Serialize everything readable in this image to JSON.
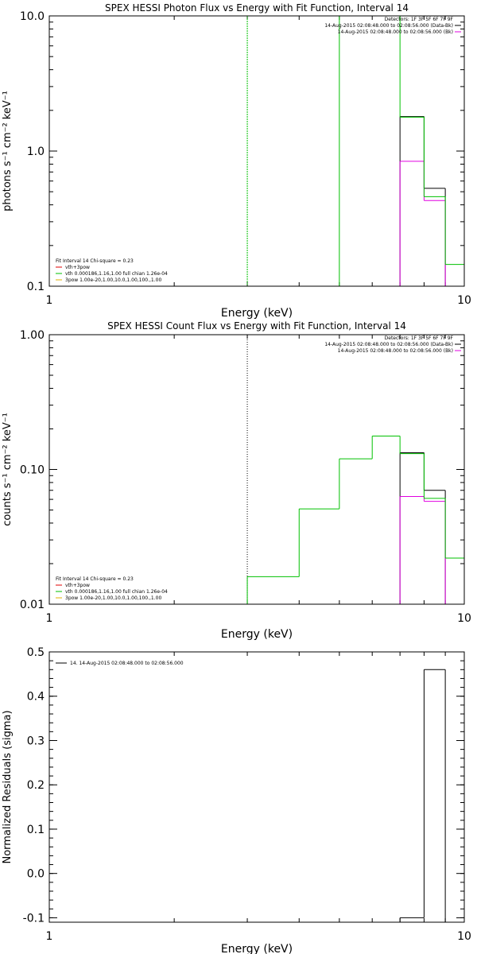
{
  "chart_data": [
    {
      "type": "step-histogram",
      "title": "SPEX HESSI Photon Flux vs Energy with Fit Function, Interval 14",
      "xlabel": "Energy (keV)",
      "ylabel": "photons s⁻¹ cm⁻² keV⁻¹",
      "x_scale": "log",
      "y_scale": "log",
      "xlim": [
        1,
        10
      ],
      "ylim": [
        0.1,
        10
      ],
      "x_ticks": [
        "1",
        "10"
      ],
      "y_ticks": [
        "0.1",
        "1.0",
        "10.0"
      ],
      "vline": {
        "x": 3.0,
        "style": "dashed",
        "color": "#00c000"
      },
      "legend_top": {
        "position": "top-right",
        "entries": [
          {
            "text": "Detectors: 1F 3F 5F 6F 7F 9F",
            "color": ""
          },
          {
            "text": "14-Aug-2015 02:08:48.000 to 02:08:56.000 (Data-Bk)",
            "color": "#000000"
          },
          {
            "text": "14-Aug-2015 02:08:48.000 to 02:08:56.000 (Bk)",
            "color": "#e000e0"
          }
        ]
      },
      "legend_bottom": {
        "position": "bottom-left",
        "entries": [
          {
            "text": "Fit Interval 14    Chi-square = 0.23",
            "color": ""
          },
          {
            "text": "vth+3pow",
            "color": "#e00000"
          },
          {
            "text": "vth 0.000186,1.16,1.00  full chian 1.26e-04",
            "color": "#00c000"
          },
          {
            "text": "3pow 1.00e-20,1.00,10.0,1.00,100.,1.00",
            "color": "#e0b000"
          }
        ]
      },
      "series": [
        {
          "name": "Data-Bk",
          "color": "#000000",
          "edges": [
            7,
            8,
            9
          ],
          "values": [
            1.8,
            0.53
          ]
        },
        {
          "name": "Bk",
          "color": "#e000e0",
          "edges": [
            7,
            8,
            9
          ],
          "values": [
            0.84,
            0.43
          ]
        },
        {
          "name": "vth",
          "color": "#00c000",
          "edges": [
            5,
            6,
            7,
            8,
            9,
            10
          ],
          "values": [
            10.0,
            10.0,
            1.78,
            0.46,
            0.145
          ]
        }
      ]
    },
    {
      "type": "step-histogram",
      "title": "SPEX HESSI Count Flux vs Energy with Fit Function, Interval 14",
      "xlabel": "Energy (keV)",
      "ylabel": "counts s⁻¹ cm⁻² keV⁻¹",
      "x_scale": "log",
      "y_scale": "log",
      "xlim": [
        1,
        10
      ],
      "ylim": [
        0.01,
        1.0
      ],
      "x_ticks": [
        "1",
        "10"
      ],
      "y_ticks": [
        "0.01",
        "0.10",
        "1.00"
      ],
      "vline": {
        "x": 3.0,
        "style": "dotted",
        "color": "#000000"
      },
      "legend_top": {
        "position": "top-right",
        "entries": [
          {
            "text": "Detectors: 1F 3F 5F 6F 7F 9F",
            "color": ""
          },
          {
            "text": "14-Aug-2015 02:08:48.000 to 02:08:56.000 (Data-Bk)",
            "color": "#000000"
          },
          {
            "text": "14-Aug-2015 02:08:48.000 to 02:08:56.000 (Bk)",
            "color": "#e000e0"
          }
        ]
      },
      "legend_bottom": {
        "position": "bottom-left",
        "entries": [
          {
            "text": "Fit Interval 14    Chi-square = 0.23",
            "color": ""
          },
          {
            "text": "vth+3pow",
            "color": "#e00000"
          },
          {
            "text": "vth 0.000186,1.16,1.00  full chian 1.26e-04",
            "color": "#00c000"
          },
          {
            "text": "3pow 1.00e-20,1.00,10.0,1.00,100.,1.00",
            "color": "#e0b000"
          }
        ]
      },
      "series": [
        {
          "name": "Data-Bk",
          "color": "#000000",
          "edges": [
            7,
            8,
            9
          ],
          "values": [
            0.133,
            0.07
          ]
        },
        {
          "name": "Bk",
          "color": "#e000e0",
          "edges": [
            7,
            8,
            9
          ],
          "values": [
            0.063,
            0.058
          ]
        },
        {
          "name": "vth",
          "color": "#00c000",
          "edges": [
            3,
            4,
            5,
            6,
            7,
            8,
            9,
            10
          ],
          "values": [
            0.016,
            0.051,
            0.12,
            0.177,
            0.131,
            0.061,
            0.022
          ]
        }
      ]
    },
    {
      "type": "step-histogram",
      "title": "",
      "xlabel": "Energy (keV)",
      "ylabel": "Normalized Residuals (sigma)",
      "x_scale": "log",
      "y_scale": "linear",
      "xlim": [
        1,
        10
      ],
      "ylim": [
        -0.11,
        0.5
      ],
      "x_ticks": [
        "1",
        "10"
      ],
      "y_ticks": [
        "-0.1",
        "0.0",
        "0.1",
        "0.2",
        "0.3",
        "0.4",
        "0.5"
      ],
      "legend_top": {
        "position": "top-left",
        "entries": [
          {
            "text": "14. 14-Aug-2015 02:08:48.000 to 02:08:56.000",
            "color": "#000000"
          }
        ]
      },
      "series": [
        {
          "name": "residuals",
          "color": "#000000",
          "edges": [
            7,
            8,
            9
          ],
          "values": [
            -0.1,
            0.46
          ]
        }
      ]
    }
  ]
}
